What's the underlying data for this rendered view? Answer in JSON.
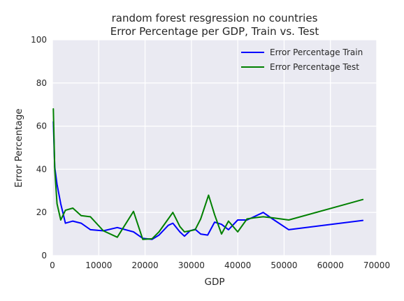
{
  "chart_data": {
    "type": "line",
    "title": "random forest resgression no countries",
    "subtitle": "Error Percentage per GDP, Train vs. Test",
    "xlabel": "GDP",
    "ylabel": "Error Percentage",
    "xlim": [
      0,
      70000
    ],
    "ylim": [
      0,
      100
    ],
    "xticks": [
      "0",
      "10000",
      "20000",
      "30000",
      "40000",
      "50000",
      "60000",
      "70000"
    ],
    "yticks": [
      "0",
      "20",
      "40",
      "60",
      "80",
      "100"
    ],
    "grid": true,
    "legend": "top-right",
    "series": [
      {
        "name": "Error Percentage Train",
        "color": "#0000ff",
        "points": [
          [
            200,
            62
          ],
          [
            500,
            41
          ],
          [
            1000,
            33
          ],
          [
            1800,
            24
          ],
          [
            2800,
            15
          ],
          [
            4400,
            16
          ],
          [
            6200,
            15
          ],
          [
            8200,
            12
          ],
          [
            11000,
            11.5
          ],
          [
            14000,
            13
          ],
          [
            17500,
            11
          ],
          [
            19500,
            8
          ],
          [
            21500,
            7.5
          ],
          [
            23000,
            9.5
          ],
          [
            25000,
            14
          ],
          [
            26000,
            15
          ],
          [
            27500,
            11
          ],
          [
            28500,
            9
          ],
          [
            29700,
            11.5
          ],
          [
            30800,
            12.2
          ],
          [
            32000,
            10
          ],
          [
            33500,
            9.5
          ],
          [
            35000,
            15.5
          ],
          [
            36500,
            14.5
          ],
          [
            38000,
            12
          ],
          [
            40000,
            16.5
          ],
          [
            42000,
            16.5
          ],
          [
            43500,
            18
          ],
          [
            45500,
            20
          ],
          [
            47500,
            17
          ],
          [
            51000,
            12
          ],
          [
            67000,
            16.3
          ]
        ]
      },
      {
        "name": "Error Percentage Test",
        "color": "#008000",
        "points": [
          [
            200,
            68
          ],
          [
            500,
            40
          ],
          [
            1000,
            24
          ],
          [
            1800,
            16.5
          ],
          [
            2800,
            21
          ],
          [
            4400,
            22
          ],
          [
            6200,
            18.5
          ],
          [
            8200,
            18
          ],
          [
            11000,
            11.5
          ],
          [
            14000,
            8.5
          ],
          [
            17500,
            20.5
          ],
          [
            19500,
            7.5
          ],
          [
            21500,
            7.8
          ],
          [
            23000,
            11
          ],
          [
            25000,
            17
          ],
          [
            26000,
            20
          ],
          [
            27500,
            13.5
          ],
          [
            28500,
            11
          ],
          [
            29700,
            11.5
          ],
          [
            30800,
            12
          ],
          [
            32000,
            17
          ],
          [
            33700,
            28
          ],
          [
            35000,
            19
          ],
          [
            36500,
            10
          ],
          [
            38000,
            16
          ],
          [
            40000,
            11
          ],
          [
            42000,
            17
          ],
          [
            43500,
            17.5
          ],
          [
            45500,
            18
          ],
          [
            47500,
            17.5
          ],
          [
            51000,
            16.5
          ],
          [
            67000,
            26
          ]
        ]
      }
    ]
  }
}
